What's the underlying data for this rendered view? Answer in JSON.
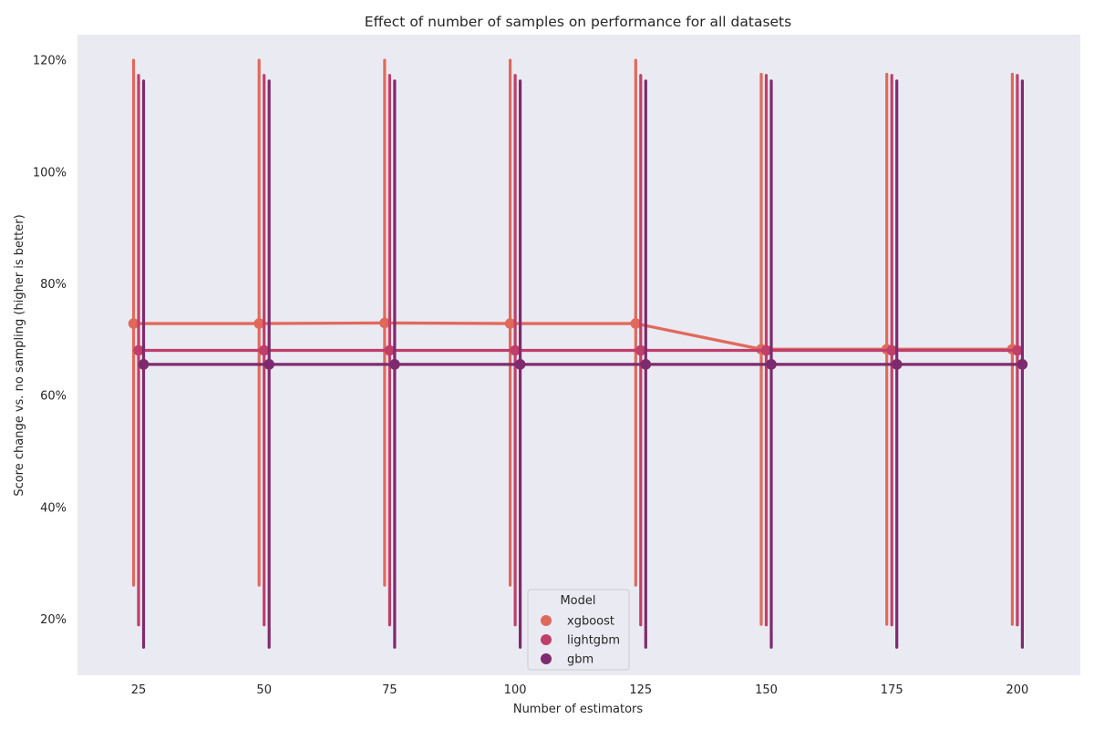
{
  "chart_data": {
    "type": "line",
    "title": "Effect of number of samples on performance for all datasets",
    "xlabel": "Number of estimators",
    "ylabel": "Score change vs. no sampling (higher is better)",
    "categories": [
      "25",
      "50",
      "75",
      "100",
      "125",
      "150",
      "175",
      "200"
    ],
    "y_ticks": [
      "20%",
      "40%",
      "60%",
      "80%",
      "100%",
      "120%"
    ],
    "y_tick_values": [
      20,
      40,
      60,
      80,
      100,
      120
    ],
    "ylim": [
      10,
      125
    ],
    "y_format": "percent",
    "grid": false,
    "background": "#eaeaf2",
    "legend": {
      "title": "Model",
      "placement": "lower center"
    },
    "series": [
      {
        "name": "xgboost",
        "color": "#e1695b",
        "values": [
          72.9,
          72.9,
          73.0,
          72.9,
          72.9,
          68.3,
          68.3,
          68.3
        ],
        "err_low": [
          26.1,
          26.1,
          26.1,
          26.1,
          26.1,
          19.1,
          19.1,
          19.1
        ],
        "err_high": [
          120.0,
          120.0,
          120.0,
          120.0,
          120.0,
          117.5,
          117.5,
          117.5
        ]
      },
      {
        "name": "lightgbm",
        "color": "#c03f6a",
        "values": [
          68.1,
          68.1,
          68.1,
          68.1,
          68.1,
          68.1,
          68.1,
          68.1
        ],
        "err_low": [
          19.0,
          19.0,
          19.0,
          19.0,
          19.0,
          19.0,
          19.0,
          19.0
        ],
        "err_high": [
          117.3,
          117.3,
          117.3,
          117.3,
          117.3,
          117.3,
          117.3,
          117.3
        ]
      },
      {
        "name": "gbm",
        "color": "#7d2b6e",
        "values": [
          65.6,
          65.6,
          65.6,
          65.6,
          65.6,
          65.6,
          65.6,
          65.6
        ],
        "err_low": [
          15.0,
          15.0,
          15.0,
          15.0,
          15.0,
          15.0,
          15.0,
          15.0
        ],
        "err_high": [
          116.3,
          116.3,
          116.3,
          116.3,
          116.3,
          116.3,
          116.3,
          116.3
        ]
      }
    ]
  }
}
